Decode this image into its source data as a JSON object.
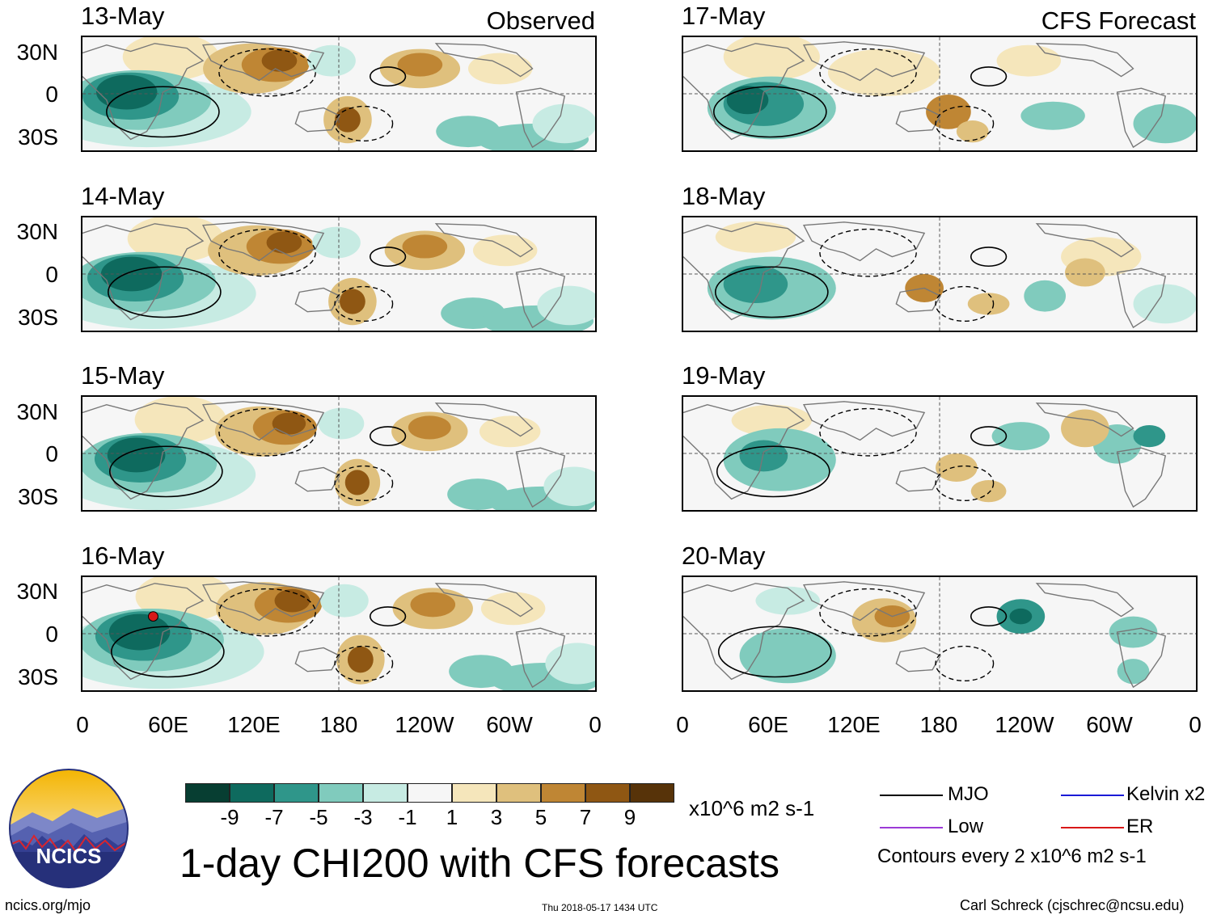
{
  "chart_data": {
    "type": "heatmap",
    "title": "1-day CHI200 with CFS forecasts",
    "units": "x10^6 m2 s-1",
    "x_ticks": [
      "0",
      "60E",
      "120E",
      "180",
      "120W",
      "60W",
      "0"
    ],
    "y_ticks": [
      "30N",
      "0",
      "30S"
    ],
    "columns": [
      {
        "label": "Observed",
        "panels": [
          "13-May",
          "14-May",
          "15-May",
          "16-May"
        ]
      },
      {
        "label": "CFS Forecast",
        "panels": [
          "17-May",
          "18-May",
          "19-May",
          "20-May"
        ]
      }
    ],
    "colorbar": {
      "tick_labels": [
        "-9",
        "-7",
        "-5",
        "-3",
        "-1",
        "1",
        "3",
        "5",
        "7",
        "9"
      ],
      "colors": [
        "#073e32",
        "#0e6a5e",
        "#2f968a",
        "#80cbbd",
        "#c7ebe3",
        "#f6f6f6",
        "#f5e6bb",
        "#dfc07d",
        "#bf8634",
        "#8f5713",
        "#573309"
      ]
    },
    "contour_note": "Contours every 2 x10^6 m2 s-1",
    "legend": [
      {
        "label": "MJO",
        "color": "#000000"
      },
      {
        "label": "Kelvin x2",
        "color": "#1a1ad6"
      },
      {
        "label": "Low",
        "color": "#9b3ad6"
      },
      {
        "label": "ER",
        "color": "#d81818"
      }
    ]
  },
  "footer": {
    "logo_text": "NCICS",
    "website": "ncics.org/mjo",
    "timestamp": "Thu 2018-05-17 1434 UTC",
    "author": "Carl Schreck (cjschrec@ncsu.edu)"
  }
}
